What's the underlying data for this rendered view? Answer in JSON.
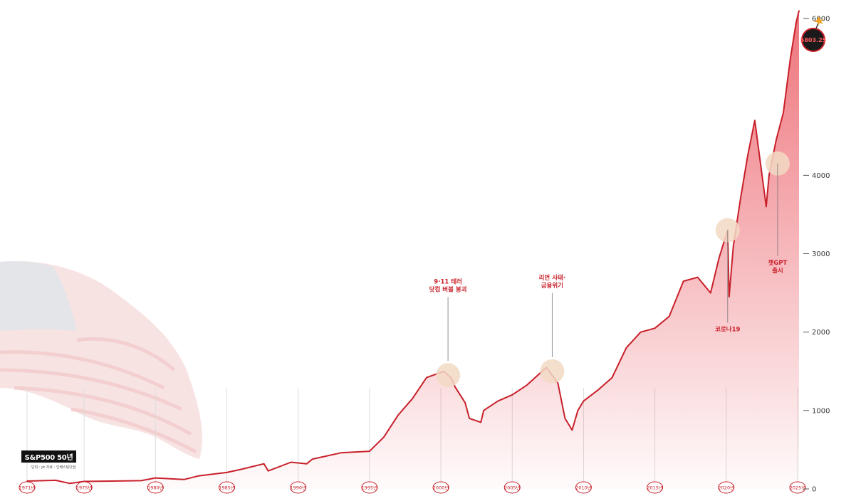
{
  "chart_data": {
    "type": "area",
    "title": "S&P500 50년",
    "note": "단위 : pt  자료 : 인베스팅닷컴",
    "colors": {
      "line": "#c8202a",
      "fill": "#e8454f",
      "marker": "#f2d9c4",
      "badge": "#c8202a"
    },
    "xlim": [
      1971,
      2025.2
    ],
    "ylim": [
      0,
      6000
    ],
    "yticks": [
      {
        "value": 0,
        "label": "0"
      },
      {
        "value": 1000,
        "label": "1000"
      },
      {
        "value": 2000,
        "label": "2000"
      },
      {
        "value": 3000,
        "label": "3000"
      },
      {
        "value": 4000,
        "label": "4000"
      },
      {
        "value": 6000,
        "label": "6000"
      }
    ],
    "xticks": [
      {
        "value": 1971,
        "label": "1971년"
      },
      {
        "value": 1975,
        "label": "1975년"
      },
      {
        "value": 1980,
        "label": "1980년"
      },
      {
        "value": 1985,
        "label": "1985년"
      },
      {
        "value": 1990,
        "label": "1990년"
      },
      {
        "value": 1995,
        "label": "1995년"
      },
      {
        "value": 2000,
        "label": "2000년"
      },
      {
        "value": 2005,
        "label": "2005년"
      },
      {
        "value": 2010,
        "label": "2010년"
      },
      {
        "value": 2015,
        "label": "2015년"
      },
      {
        "value": 2020,
        "label": "2020년"
      },
      {
        "value": 2025,
        "label": "2025년"
      }
    ],
    "series": [
      {
        "x": [
          1971,
          1973,
          1974,
          1975,
          1977,
          1979,
          1980,
          1982,
          1983,
          1985,
          1986,
          1987.6,
          1987.9,
          1989.5,
          1990.6,
          1991,
          1993,
          1995,
          1996,
          1997,
          1998,
          1999,
          2000.2,
          2000.7,
          2001,
          2001.7,
          2002,
          2002.8,
          2003,
          2004,
          2005,
          2006,
          2007.4,
          2007.8,
          2008.2,
          2008.7,
          2009.2,
          2009.6,
          2010,
          2011,
          2012,
          2013,
          2014,
          2015,
          2016,
          2017,
          2018,
          2018.9,
          2019.5,
          2020.1,
          2020.2,
          2020.5,
          2021,
          2021.5,
          2022,
          2022.8,
          2023,
          2023.5,
          2024,
          2024.5,
          2024.9,
          2025.1
        ],
        "y": [
          100,
          110,
          70,
          95,
          100,
          105,
          140,
          120,
          165,
          210,
          250,
          320,
          230,
          340,
          320,
          380,
          460,
          480,
          660,
          940,
          1150,
          1420,
          1500,
          1420,
          1300,
          1100,
          900,
          850,
          1000,
          1120,
          1200,
          1320,
          1550,
          1450,
          1350,
          900,
          750,
          1000,
          1120,
          1260,
          1420,
          1800,
          2000,
          2050,
          2200,
          2650,
          2700,
          2500,
          2950,
          3300,
          2450,
          3100,
          3700,
          4250,
          4700,
          3600,
          4000,
          4450,
          4800,
          5500,
          5950,
          6100
        ]
      }
    ],
    "annotations": [
      {
        "x": 2000.5,
        "y": 1450,
        "lines": [
          "9·11 테러",
          "닷컴 버블 붕괴"
        ]
      },
      {
        "x": 2007.8,
        "y": 1500,
        "lines": [
          "리먼 사태·",
          "금융위기"
        ]
      },
      {
        "x": 2020.1,
        "y": 3300,
        "lines": [
          "코로나19"
        ]
      },
      {
        "x": 2023.6,
        "y": 4150,
        "lines": [
          "챗GPT",
          "출시"
        ]
      }
    ],
    "end_badge": {
      "label": "5803.25"
    }
  }
}
